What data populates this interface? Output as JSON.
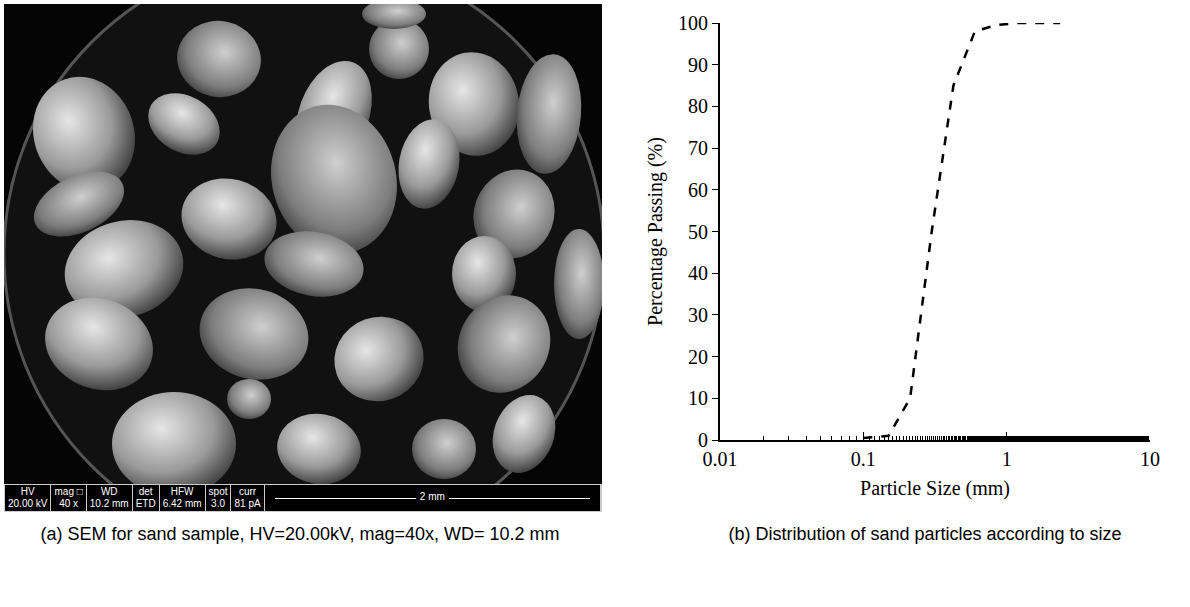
{
  "chart_data": {
    "type": "line",
    "caption": "(b) Distribution of sand particles according to size",
    "x_label": "Particle Size (mm)",
    "y_label": "Percentage Passing (%)",
    "x": [
      0.1,
      0.15,
      0.212,
      0.3,
      0.425,
      0.6,
      0.85,
      1.18,
      2.36
    ],
    "values": [
      0.5,
      1,
      10,
      50,
      85,
      98,
      99.5,
      100,
      100
    ],
    "color": "#000000",
    "line_style": "dashed",
    "log": "x",
    "grid": false,
    "xlim": [
      0.01,
      10
    ],
    "xticks": [
      0.01,
      0.1,
      1,
      10
    ],
    "ylim": [
      0,
      100
    ],
    "yticks": [
      0,
      10,
      20,
      30,
      40,
      50,
      60,
      70,
      80,
      90,
      100
    ]
  },
  "image_panel": {
    "caption": "(a) SEM for sand sample, HV=20.00kV, mag=40x, WD= 10.2 mm",
    "info_bar": [
      {
        "label": "HV",
        "value": "20.00 kV"
      },
      {
        "label": "mag □",
        "value": "40 x"
      },
      {
        "label": "WD",
        "value": "10.2 mm"
      },
      {
        "label": "det",
        "value": "ETD"
      },
      {
        "label": "HFW",
        "value": "6.42 mm"
      },
      {
        "label": "spot",
        "value": "3.0"
      },
      {
        "label": "curr",
        "value": "81 pA"
      }
    ],
    "scale_bar": "2 mm"
  }
}
